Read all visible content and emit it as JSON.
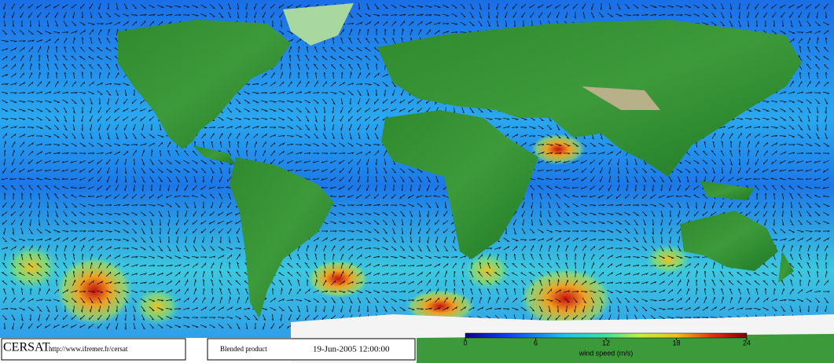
{
  "map": {
    "type": "wind-map",
    "logo": "CERSAT",
    "url": "http://www.ifremer.fr/cersat",
    "product": "Blended product",
    "date": "19-Jun-2005 12:00:00",
    "colorbar": {
      "label": "wind speed (m/s)",
      "lim": [
        0,
        24
      ],
      "ticks": [
        0,
        6,
        12,
        18,
        24
      ]
    }
  }
}
